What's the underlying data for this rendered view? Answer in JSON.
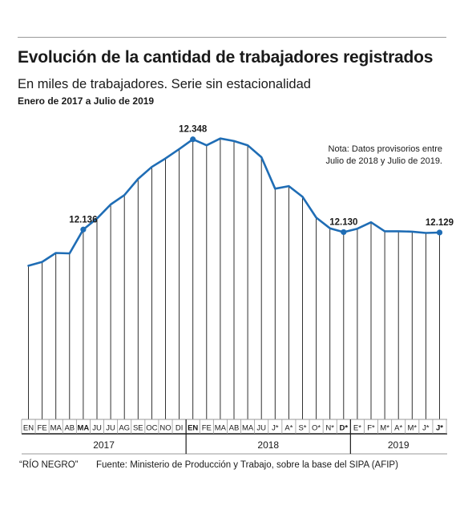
{
  "header": {
    "title": "Evolución de la cantidad de trabajadores registrados",
    "subtitle": "En miles de trabajadores. Serie sin estacionalidad",
    "range": "Enero de 2017 a Julio de 2019"
  },
  "note": "Nota: Datos provisorios entre Julio de 2018 y Julio de 2019.",
  "footer": {
    "credit": "“RÍO NEGRO”",
    "source": "Fuente: Ministerio de Producción y Trabajo, sobre la base del SIPA (AFIP)"
  },
  "colors": {
    "line": "#1f6db5",
    "drop": "#1a1a1a",
    "grid": "#9a9a9a"
  },
  "chart_data": {
    "type": "line",
    "title": "Evolución de la cantidad de trabajadores registrados",
    "subtitle": "En miles de trabajadores. Serie sin estacionalidad",
    "xlabel": "",
    "ylabel": "",
    "ylim": [
      11690,
      12372
    ],
    "grid": false,
    "x": [
      "EN",
      "FE",
      "MA",
      "AB",
      "MA",
      "JU",
      "JU",
      "AG",
      "SE",
      "OC",
      "NO",
      "DI",
      "EN",
      "FE",
      "MA",
      "AB",
      "MA",
      "JU",
      "J*",
      "A*",
      "S*",
      "O*",
      "N*",
      "D*",
      "E*",
      "F*",
      "M*",
      "A*",
      "M*",
      "J*",
      "J*"
    ],
    "bold_ticks": [
      4,
      12,
      23,
      30
    ],
    "years": [
      {
        "label": "2017",
        "start": 0,
        "end": 11
      },
      {
        "label": "2018",
        "start": 12,
        "end": 23
      },
      {
        "label": "2019",
        "start": 24,
        "end": 30
      }
    ],
    "series": [
      {
        "values": [
          12051,
          12060,
          12081,
          12080,
          12136,
          12162,
          12195,
          12217,
          12255,
          12283,
          12303,
          12325,
          12348,
          12334,
          12350,
          12344,
          12334,
          12306,
          12232,
          12238,
          12213,
          12164,
          12139,
          12130,
          12138,
          12153,
          12132,
          12132,
          12131,
          12128,
          12129
        ]
      }
    ],
    "annotations": [
      {
        "index": 4,
        "label": "12.136"
      },
      {
        "index": 12,
        "label": "12.348"
      },
      {
        "index": 23,
        "label": "12.130"
      },
      {
        "index": 30,
        "label": "12.129"
      }
    ]
  }
}
